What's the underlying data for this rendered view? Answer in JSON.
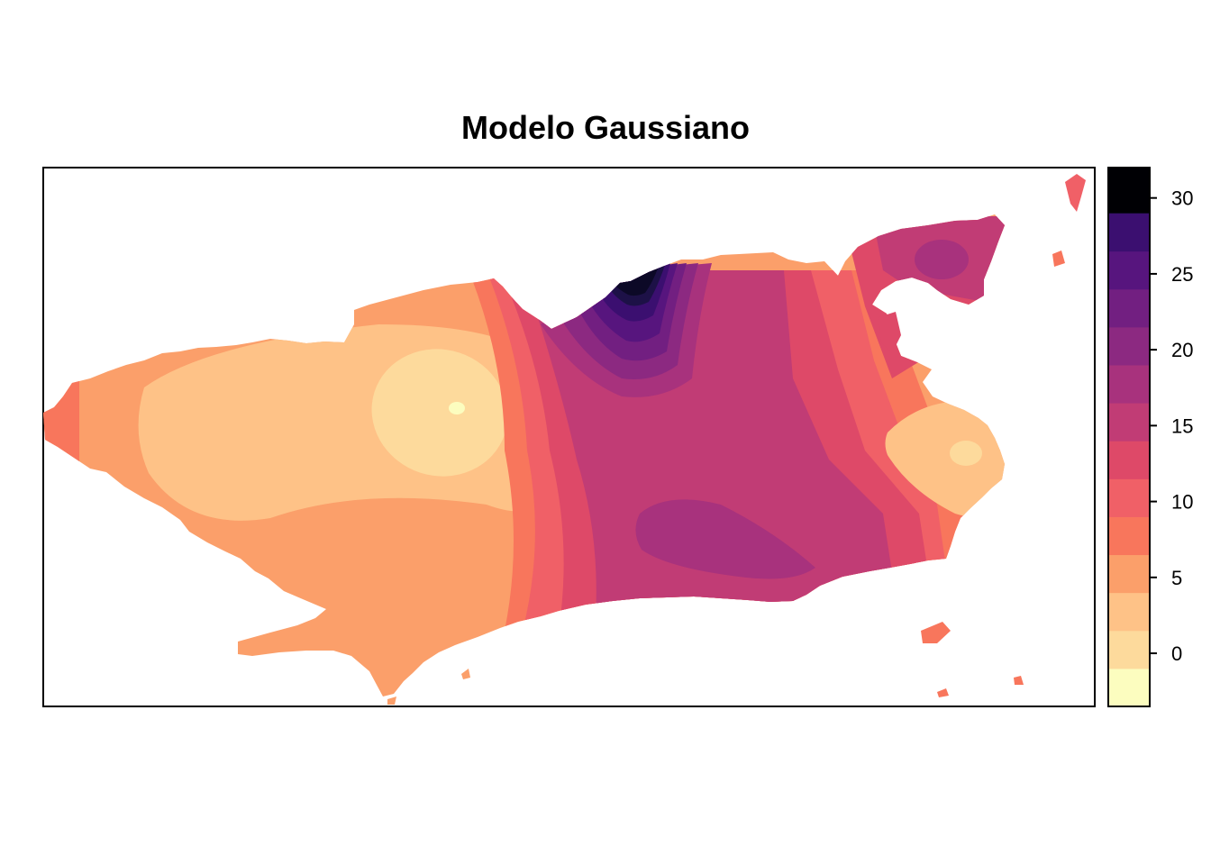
{
  "chart_data": {
    "type": "heatmap",
    "title": "Modelo Gaussiano",
    "colorbar": {
      "breaks": [
        -3.5,
        -1.0,
        1.5,
        4.0,
        6.5,
        9.0,
        11.5,
        14.0,
        16.5,
        19.0,
        21.5,
        24.0,
        26.5,
        29.0,
        32.0
      ],
      "colors": [
        "#FCFDBF",
        "#FDDA9C",
        "#FEC287",
        "#FB9F6A",
        "#F8765C",
        "#F06067",
        "#DE4968",
        "#C13C75",
        "#A8327D",
        "#8C2981",
        "#721F81",
        "#57157E",
        "#3B0F70",
        "#1D1147",
        "#0C0927",
        "#000004"
      ],
      "ticks": [
        0,
        5,
        10,
        15,
        20,
        25,
        30
      ],
      "range": [
        -3.5,
        32
      ]
    },
    "grid": false,
    "legend_position": "right"
  }
}
